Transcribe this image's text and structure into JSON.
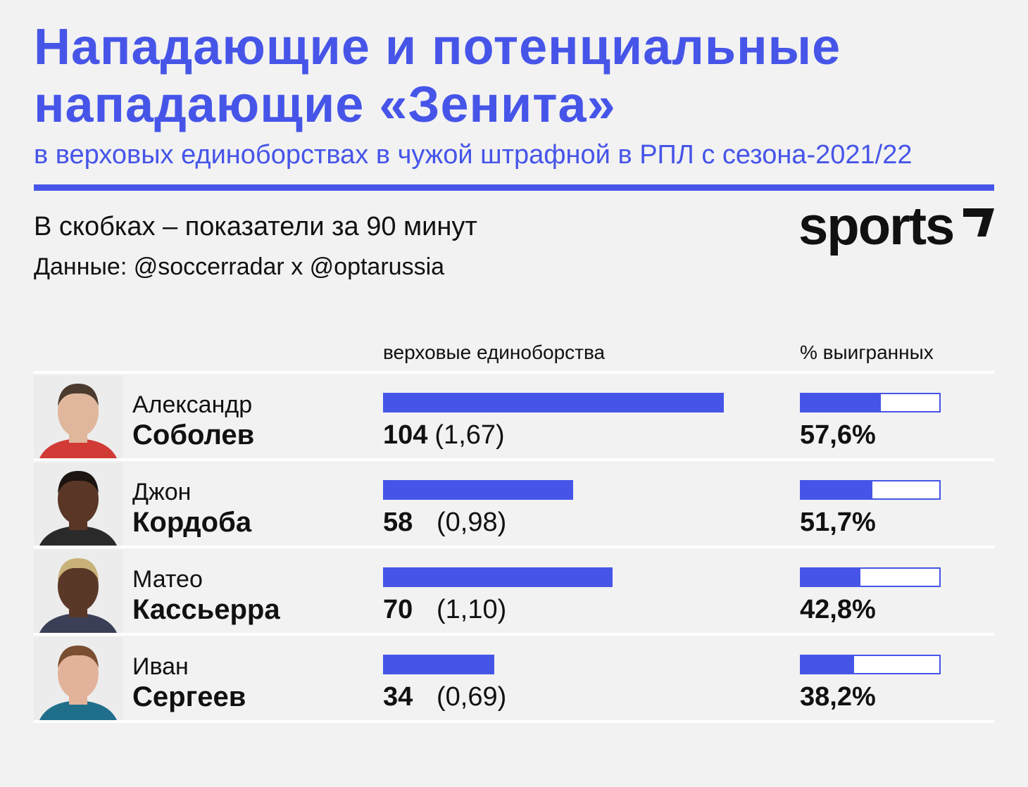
{
  "header": {
    "title_line1": "Нападающие и потенциальные",
    "title_line2": "нападающие «Зенита»",
    "subtitle": "в верховых единоборствах в чужой штрафной в РПЛ с сезона-2021/22",
    "note": "В скобках – показатели за 90 минут",
    "source": "Данные: @soccerradar x @optarussia",
    "logo_text": "sports"
  },
  "colors": {
    "accent": "#4655e8",
    "background": "#f2f2f2",
    "text": "#111111"
  },
  "columns": {
    "duels": "верховые единоборства",
    "pct": "% выигранных"
  },
  "chart_data": {
    "type": "bar",
    "categories": [
      "Александр Соболев",
      "Джон Кордоба",
      "Матео Кассьерра",
      "Иван Сергеев"
    ],
    "series": [
      {
        "name": "верховые единоборства",
        "values": [
          104,
          58,
          70,
          34
        ]
      },
      {
        "name": "% выигранных",
        "values": [
          57.6,
          51.7,
          42.8,
          38.2
        ]
      }
    ],
    "xlim": [
      0,
      104
    ],
    "pct_range": [
      0,
      100
    ],
    "rows": [
      {
        "first_name": "Александр",
        "last_name": "Соболев",
        "duels": 104,
        "duels_label": "104",
        "per90": "(1,67)",
        "pct": 57.6,
        "pct_label": "57,6%",
        "photo": "player-photo-sobolev"
      },
      {
        "first_name": "Джон",
        "last_name": "Кордоба",
        "duels": 58,
        "duels_label": "58",
        "per90": "(0,98)",
        "pct": 51.7,
        "pct_label": "51,7%",
        "photo": "player-photo-cordoba"
      },
      {
        "first_name": "Матео",
        "last_name": "Кассьерра",
        "duels": 70,
        "duels_label": "70",
        "per90": "(1,10)",
        "pct": 42.8,
        "pct_label": "42,8%",
        "photo": "player-photo-cassierra"
      },
      {
        "first_name": "Иван",
        "last_name": "Сергеев",
        "duels": 34,
        "duels_label": "34",
        "per90": "(0,69)",
        "pct": 38.2,
        "pct_label": "38,2%",
        "photo": "player-photo-sergeev"
      }
    ]
  }
}
